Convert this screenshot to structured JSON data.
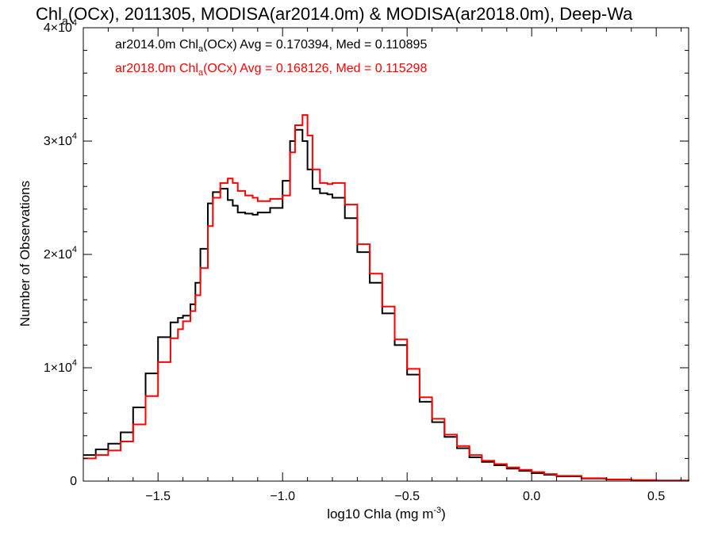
{
  "chart_data": {
    "type": "line",
    "title": {
      "prefix": "Chl",
      "sub": "a",
      "suffix": "(OCx), 2011305, MODISA(ar2014.0m) & MODISA(ar2018.0m), Deep-Wa"
    },
    "xlabel": {
      "main": "log10 Chla (mg m",
      "sup": "-3",
      "close": ")"
    },
    "ylabel": "Number of Observations",
    "xlim": [
      -1.8,
      0.63
    ],
    "ylim": [
      0,
      40000
    ],
    "x_ticks": [
      {
        "value": -1.5,
        "label": "−1.5"
      },
      {
        "value": -1.0,
        "label": "−1.0"
      },
      {
        "value": -0.5,
        "label": "−0.5"
      },
      {
        "value": 0.0,
        "label": "0.0"
      },
      {
        "value": 0.5,
        "label": "0.5"
      }
    ],
    "x_minor_step": 0.1,
    "y_ticks": [
      {
        "value": 0,
        "base": "0",
        "exp": ""
      },
      {
        "value": 10000,
        "base": "1×10",
        "exp": "4"
      },
      {
        "value": 20000,
        "base": "2×10",
        "exp": "4"
      },
      {
        "value": 30000,
        "base": "3×10",
        "exp": "4"
      },
      {
        "value": 40000,
        "base": "4×10",
        "exp": "4"
      }
    ],
    "y_minor_step": 2000,
    "grid": false,
    "legend_placement": "top-left",
    "series": [
      {
        "name": "ar2014.0m",
        "color": "#000000",
        "legend": {
          "pre": "ar2014.0m Chl",
          "sub": "a",
          "post": "(OCx) Avg = 0.170394, Med = 0.110895"
        },
        "x": [
          -1.8,
          -1.75,
          -1.7,
          -1.65,
          -1.6,
          -1.55,
          -1.5,
          -1.45,
          -1.42,
          -1.4,
          -1.37,
          -1.35,
          -1.33,
          -1.3,
          -1.28,
          -1.25,
          -1.22,
          -1.2,
          -1.18,
          -1.15,
          -1.12,
          -1.1,
          -1.05,
          -1.0,
          -0.97,
          -0.95,
          -0.92,
          -0.9,
          -0.88,
          -0.85,
          -0.82,
          -0.8,
          -0.75,
          -0.7,
          -0.65,
          -0.6,
          -0.55,
          -0.5,
          -0.45,
          -0.4,
          -0.35,
          -0.3,
          -0.25,
          -0.2,
          -0.15,
          -0.1,
          -0.05,
          0.0,
          0.05,
          0.1,
          0.2,
          0.3,
          0.4,
          0.5,
          0.63
        ],
        "y": [
          2300,
          2800,
          3300,
          4300,
          6500,
          9500,
          12700,
          14000,
          14400,
          14600,
          15600,
          17500,
          20500,
          24500,
          25500,
          25800,
          24800,
          24300,
          23700,
          23600,
          23500,
          23700,
          24100,
          26500,
          30000,
          31000,
          30000,
          27500,
          25800,
          25400,
          25300,
          25000,
          23200,
          20200,
          17500,
          14800,
          12000,
          9400,
          7000,
          5200,
          3900,
          2900,
          2100,
          1700,
          1400,
          1100,
          900,
          700,
          560,
          420,
          230,
          140,
          80,
          45,
          20
        ]
      },
      {
        "name": "ar2018.0m",
        "color": "#ff0000",
        "legend": {
          "pre": "ar2018.0m Chl",
          "sub": "a",
          "post": "(OCx) Avg = 0.168126, Med = 0.115298"
        },
        "x": [
          -1.8,
          -1.75,
          -1.7,
          -1.65,
          -1.6,
          -1.55,
          -1.5,
          -1.45,
          -1.42,
          -1.4,
          -1.37,
          -1.35,
          -1.33,
          -1.3,
          -1.28,
          -1.25,
          -1.22,
          -1.2,
          -1.18,
          -1.15,
          -1.12,
          -1.1,
          -1.05,
          -1.0,
          -0.97,
          -0.95,
          -0.92,
          -0.9,
          -0.88,
          -0.85,
          -0.82,
          -0.8,
          -0.75,
          -0.7,
          -0.65,
          -0.6,
          -0.55,
          -0.5,
          -0.45,
          -0.4,
          -0.35,
          -0.3,
          -0.25,
          -0.2,
          -0.15,
          -0.1,
          -0.05,
          0.0,
          0.05,
          0.1,
          0.2,
          0.3,
          0.4,
          0.5,
          0.63
        ],
        "y": [
          2000,
          2300,
          2700,
          3500,
          5000,
          7500,
          10500,
          12600,
          13400,
          14100,
          15000,
          16400,
          18800,
          22500,
          25000,
          26300,
          26700,
          26300,
          25600,
          25200,
          25000,
          24700,
          24900,
          25200,
          29000,
          31400,
          32300,
          30500,
          27500,
          26300,
          26200,
          26300,
          24400,
          20900,
          18300,
          15400,
          12500,
          9900,
          7400,
          5500,
          4100,
          3100,
          2300,
          1800,
          1500,
          1200,
          1000,
          800,
          620,
          460,
          250,
          150,
          90,
          50,
          25
        ]
      }
    ]
  }
}
